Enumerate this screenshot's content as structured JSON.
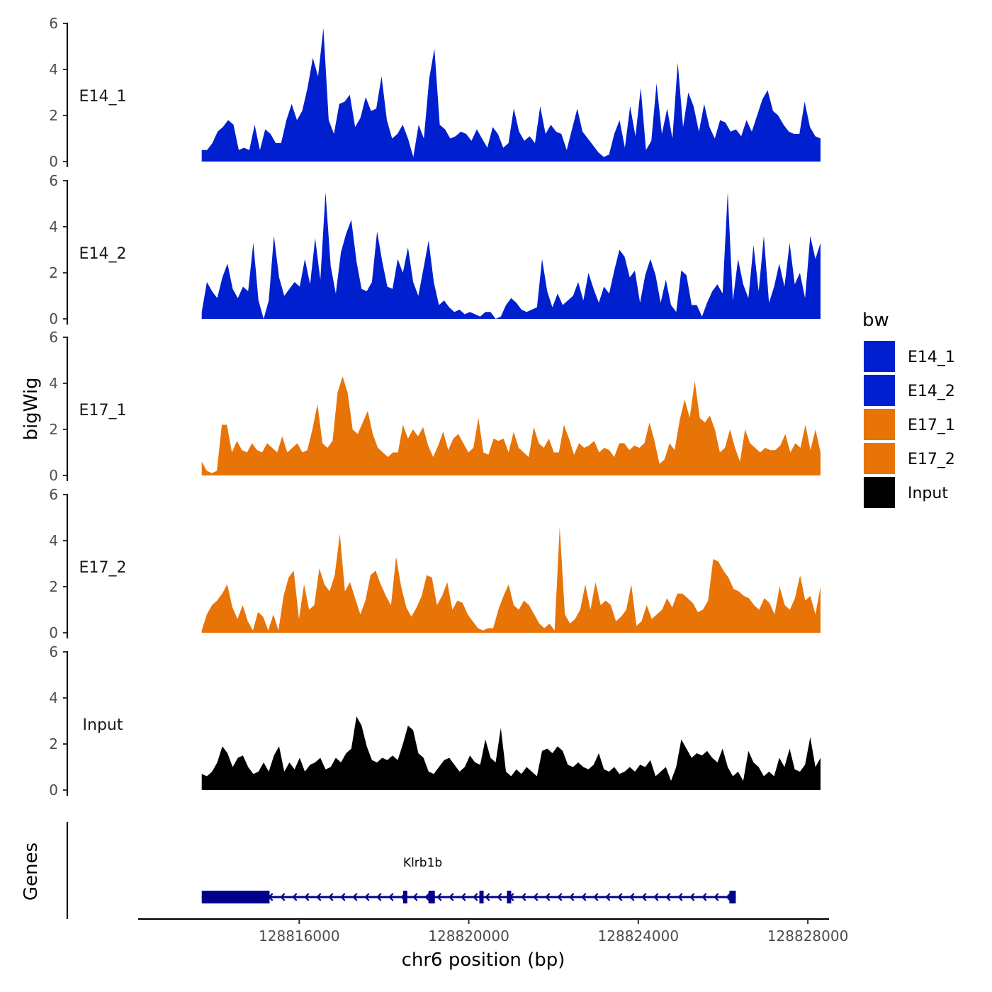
{
  "chart_data": {
    "type": "area",
    "title": "",
    "xlabel": "chr6 position (bp)",
    "ylabel": "bigWig",
    "genes_label": "Genes",
    "xlim": [
      128812200,
      128828500
    ],
    "ylim": [
      0,
      6
    ],
    "x_ticks": [
      128816000,
      128820000,
      128824000,
      128828000
    ],
    "x_tick_labels": [
      "128816000",
      "128820000",
      "128824000",
      "128828000"
    ],
    "y_ticks": [
      0,
      2,
      4,
      6
    ],
    "y_tick_labels": [
      "0",
      "2",
      "4",
      "6"
    ],
    "region": [
      128813700,
      128828300
    ],
    "series": [
      {
        "name": "E14_1",
        "color": "#0020CF",
        "values": [
          0.5,
          0.5,
          0.8,
          1.3,
          1.5,
          1.8,
          1.6,
          0.5,
          0.6,
          0.5,
          1.6,
          0.5,
          1.4,
          1.2,
          0.8,
          0.8,
          1.8,
          2.5,
          1.8,
          2.2,
          3.2,
          4.5,
          3.7,
          5.8,
          1.8,
          1.2,
          2.5,
          2.6,
          2.9,
          1.5,
          1.9,
          2.8,
          2.2,
          2.3,
          3.7,
          1.8,
          1.0,
          1.2,
          1.6,
          1.0,
          0.2,
          1.6,
          1.0,
          3.6,
          4.9,
          1.6,
          1.4,
          1.0,
          1.1,
          1.3,
          1.2,
          0.9,
          1.4,
          1.0,
          0.6,
          1.5,
          1.2,
          0.6,
          0.8,
          2.3,
          1.3,
          0.9,
          1.1,
          0.8,
          2.4,
          1.2,
          1.6,
          1.3,
          1.2,
          0.5,
          1.4,
          2.3,
          1.3,
          1.0,
          0.7,
          0.4,
          0.2,
          0.3,
          1.2,
          1.8,
          0.6,
          2.4,
          1.1,
          3.2,
          0.5,
          0.9,
          3.4,
          1.2,
          2.3,
          1.0,
          4.3,
          1.5,
          3.0,
          2.4,
          1.3,
          2.5,
          1.5,
          1.0,
          1.8,
          1.7,
          1.3,
          1.4,
          1.1,
          1.8,
          1.3,
          2.0,
          2.7,
          3.1,
          2.2,
          2.0,
          1.6,
          1.3,
          1.2,
          1.2,
          2.6,
          1.5,
          1.1,
          1.0
        ]
      },
      {
        "name": "E14_2",
        "color": "#0020CF",
        "values": [
          0.3,
          1.6,
          1.2,
          0.9,
          1.8,
          2.4,
          1.3,
          0.9,
          1.4,
          1.2,
          3.3,
          0.8,
          0,
          0.8,
          3.6,
          1.8,
          1.0,
          1.3,
          1.6,
          1.4,
          2.6,
          1.5,
          3.5,
          1.7,
          5.5,
          2.3,
          1.1,
          2.9,
          3.7,
          4.3,
          2.5,
          1.3,
          1.2,
          1.6,
          3.8,
          2.5,
          1.4,
          1.3,
          2.6,
          2.0,
          3.1,
          1.6,
          1.0,
          2.2,
          3.4,
          1.6,
          0.6,
          0.8,
          0.5,
          0.3,
          0.4,
          0.2,
          0.3,
          0.2,
          0.1,
          0.3,
          0.3,
          0,
          0.1,
          0.6,
          0.9,
          0.7,
          0.4,
          0.3,
          0.4,
          0.5,
          2.6,
          1.2,
          0.5,
          1.1,
          0.6,
          0.8,
          1.0,
          1.6,
          0.8,
          2.0,
          1.3,
          0.7,
          1.4,
          1.1,
          2.1,
          3.0,
          2.7,
          1.8,
          2.1,
          0.7,
          1.9,
          2.6,
          1.9,
          0.7,
          1.7,
          0.6,
          0.3,
          2.1,
          1.9,
          0.6,
          0.6,
          0.1,
          0.7,
          1.2,
          1.5,
          1.1,
          5.5,
          0.8,
          2.6,
          1.5,
          0.9,
          3.2,
          1.2,
          3.6,
          0.7,
          1.4,
          2.4,
          1.4,
          3.3,
          1.5,
          2.0,
          0.9,
          3.6,
          2.6,
          3.3
        ]
      },
      {
        "name": "E17_1",
        "color": "#E87407",
        "values": [
          0.6,
          0.2,
          0.1,
          0.2,
          2.2,
          2.2,
          1.0,
          1.5,
          1.1,
          1.0,
          1.4,
          1.1,
          1.0,
          1.4,
          1.2,
          1.0,
          1.7,
          1.0,
          1.2,
          1.4,
          1.0,
          1.1,
          2.0,
          3.1,
          1.4,
          1.2,
          1.5,
          3.6,
          4.3,
          3.6,
          2.0,
          1.8,
          2.3,
          2.8,
          1.8,
          1.2,
          1.0,
          0.8,
          1.0,
          1.0,
          2.2,
          1.6,
          2.0,
          1.7,
          2.1,
          1.3,
          0.8,
          1.3,
          1.9,
          1.1,
          1.6,
          1.8,
          1.4,
          1.0,
          1.2,
          2.5,
          1.0,
          0.9,
          1.6,
          1.5,
          1.6,
          1.0,
          1.9,
          1.2,
          1.0,
          0.8,
          2.1,
          1.4,
          1.2,
          1.6,
          1.0,
          1.0,
          2.2,
          1.6,
          0.9,
          1.4,
          1.2,
          1.3,
          1.5,
          1.0,
          1.2,
          1.1,
          0.8,
          1.4,
          1.4,
          1.1,
          1.3,
          1.2,
          1.4,
          2.3,
          1.5,
          0.5,
          0.7,
          1.4,
          1.1,
          2.4,
          3.3,
          2.5,
          4.1,
          2.5,
          2.3,
          2.6,
          2.0,
          1.0,
          1.2,
          2.0,
          1.2,
          0.6,
          2.0,
          1.4,
          1.2,
          1.0,
          1.2,
          1.1,
          1.1,
          1.3,
          1.8,
          1.0,
          1.4,
          1.2,
          2.2,
          1.1,
          2.0,
          1.0
        ]
      },
      {
        "name": "E17_2",
        "color": "#E87407",
        "values": [
          0.1,
          0.8,
          1.2,
          1.4,
          1.7,
          2.1,
          1.1,
          0.6,
          1.2,
          0.5,
          0.1,
          0.9,
          0.7,
          0.1,
          0.8,
          0.1,
          1.6,
          2.4,
          2.7,
          0.6,
          2.1,
          1.0,
          1.2,
          2.8,
          2.1,
          1.8,
          2.5,
          4.3,
          1.8,
          2.2,
          1.5,
          0.8,
          1.4,
          2.5,
          2.7,
          2.1,
          1.6,
          1.2,
          3.3,
          2.0,
          1.1,
          0.7,
          1.1,
          1.6,
          2.5,
          2.4,
          1.2,
          1.6,
          2.2,
          1.0,
          1.4,
          1.3,
          0.8,
          0.5,
          0.2,
          0.1,
          0.2,
          0.2,
          1.0,
          1.6,
          2.1,
          1.2,
          1.0,
          1.4,
          1.2,
          0.8,
          0.4,
          0.2,
          0.4,
          0.1,
          4.6,
          0.8,
          0.4,
          0.6,
          1.0,
          2.1,
          1.0,
          2.2,
          1.2,
          1.4,
          1.2,
          0.5,
          0.7,
          1.0,
          2.1,
          0.3,
          0.5,
          1.2,
          0.6,
          0.8,
          1.0,
          1.5,
          1.1,
          1.7,
          1.7,
          1.5,
          1.3,
          0.9,
          1.0,
          1.4,
          3.2,
          3.1,
          2.7,
          2.4,
          1.9,
          1.8,
          1.6,
          1.5,
          1.2,
          1.0,
          1.5,
          1.3,
          0.8,
          2.0,
          1.2,
          1.0,
          1.5,
          2.5,
          1.4,
          1.6,
          0.8,
          2.0
        ]
      },
      {
        "name": "Input",
        "color": "#000000",
        "values": [
          0.7,
          0.6,
          0.8,
          1.2,
          1.9,
          1.6,
          1.0,
          1.4,
          1.5,
          1.0,
          0.7,
          0.8,
          1.2,
          0.8,
          1.5,
          1.9,
          0.8,
          1.2,
          0.9,
          1.4,
          0.8,
          1.1,
          1.2,
          1.4,
          0.9,
          1.0,
          1.4,
          1.2,
          1.6,
          1.8,
          3.2,
          2.8,
          1.9,
          1.3,
          1.2,
          1.4,
          1.3,
          1.5,
          1.3,
          2.0,
          2.8,
          2.6,
          1.6,
          1.4,
          0.8,
          0.7,
          1.0,
          1.3,
          1.4,
          1.1,
          0.8,
          1.0,
          1.5,
          1.2,
          1.1,
          2.2,
          1.4,
          1.2,
          2.7,
          0.8,
          0.6,
          0.9,
          0.7,
          1.0,
          0.8,
          0.6,
          1.7,
          1.8,
          1.6,
          1.9,
          1.7,
          1.1,
          1.0,
          1.2,
          1.0,
          0.9,
          1.1,
          1.6,
          0.9,
          0.8,
          1.0,
          0.7,
          0.8,
          1.0,
          0.8,
          1.1,
          1.0,
          1.3,
          0.6,
          0.8,
          1.0,
          0.4,
          1.0,
          2.2,
          1.8,
          1.4,
          1.6,
          1.5,
          1.7,
          1.4,
          1.2,
          1.8,
          1.0,
          0.6,
          0.8,
          0.4,
          1.7,
          1.2,
          1.0,
          0.6,
          0.8,
          0.6,
          1.4,
          1.0,
          1.8,
          0.9,
          0.8,
          1.1,
          2.3,
          1.0,
          1.4
        ]
      }
    ],
    "legend": {
      "title": "bw",
      "placement": "right",
      "entries": [
        {
          "label": "E14_1",
          "color": "#0020CF"
        },
        {
          "label": "E14_2",
          "color": "#0020CF"
        },
        {
          "label": "E17_1",
          "color": "#E87407"
        },
        {
          "label": "E17_2",
          "color": "#E87407"
        },
        {
          "label": "Input",
          "color": "#000000"
        }
      ]
    },
    "gene": {
      "name": "Klrb1b",
      "color": "#00008B",
      "strand": "-",
      "start": 128813700,
      "end": 128826300,
      "exons": [
        [
          128813700,
          128815300
        ],
        [
          128818450,
          128818550
        ],
        [
          128819050,
          128819200
        ],
        [
          128820250,
          128820330
        ],
        [
          128820900,
          128821000
        ],
        [
          128826150,
          128826300
        ]
      ]
    }
  }
}
